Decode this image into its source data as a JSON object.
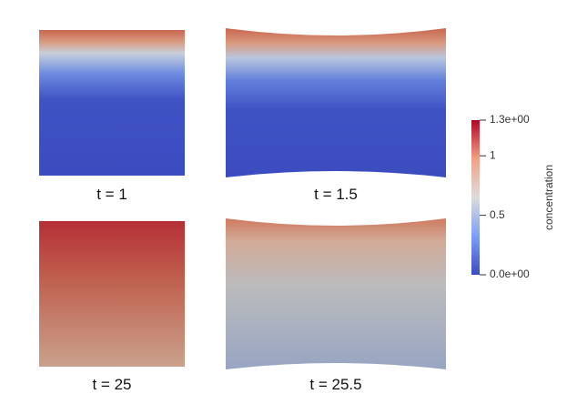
{
  "panels": [
    {
      "label": "t = 1"
    },
    {
      "label": "t = 1.5"
    },
    {
      "label": "t = 25"
    },
    {
      "label": "t = 25.5"
    }
  ],
  "colorbar": {
    "title": "concentration",
    "range": [
      0,
      1.3
    ],
    "ticks": [
      {
        "value": 0,
        "label": "0.0e+00"
      },
      0.5,
      1,
      {
        "value": 1.3,
        "label": "1.3e+00"
      }
    ]
  }
}
